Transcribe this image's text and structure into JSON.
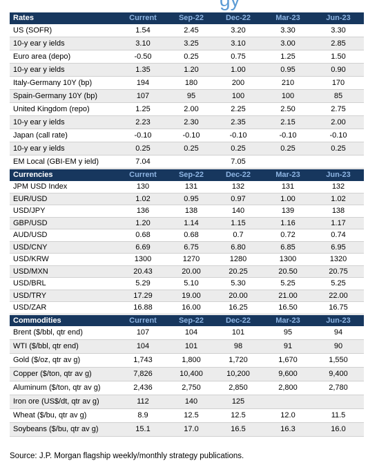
{
  "title_fragment": "gy",
  "sections": [
    {
      "title": "Rates",
      "columns": [
        "Current",
        "Sep-22",
        "Dec-22",
        "Mar-23",
        "Jun-23"
      ],
      "rows": [
        [
          "US (SOFR)",
          "1.54",
          "2.45",
          "3.20",
          "3.30",
          "3.30"
        ],
        [
          "10-y ear y ields",
          "3.10",
          "3.25",
          "3.10",
          "3.00",
          "2.85"
        ],
        [
          "Euro area (depo)",
          "-0.50",
          "0.25",
          "0.75",
          "1.25",
          "1.50"
        ],
        [
          "10-y ear y ields",
          "1.35",
          "1.20",
          "1.00",
          "0.95",
          "0.90"
        ],
        [
          "Italy-Germany 10Y (bp)",
          "194",
          "180",
          "200",
          "210",
          "170"
        ],
        [
          "Spain-Germany 10Y (bp)",
          "107",
          "95",
          "100",
          "100",
          "85"
        ],
        [
          "United Kingdom (repo)",
          "1.25",
          "2.00",
          "2.25",
          "2.50",
          "2.75"
        ],
        [
          "10-y ear y ields",
          "2.23",
          "2.30",
          "2.35",
          "2.15",
          "2.00"
        ],
        [
          "Japan (call rate)",
          "-0.10",
          "-0.10",
          "-0.10",
          "-0.10",
          "-0.10"
        ],
        [
          "10-y ear y ields",
          "0.25",
          "0.25",
          "0.25",
          "0.25",
          "0.25"
        ],
        [
          "EM Local (GBI-EM y ield)",
          "7.04",
          null,
          "7.05",
          null,
          null
        ]
      ]
    },
    {
      "title": "Currencies",
      "columns": [
        "Current",
        "Sep-22",
        "Dec-22",
        "Mar-23",
        "Jun-23"
      ],
      "rows": [
        [
          "JPM USD Index",
          "130",
          "131",
          "132",
          "131",
          "132"
        ],
        [
          "EUR/USD",
          "1.02",
          "0.95",
          "0.97",
          "1.00",
          "1.02"
        ],
        [
          "USD/JPY",
          "136",
          "138",
          "140",
          "139",
          "138"
        ],
        [
          "GBP/USD",
          "1.20",
          "1.14",
          "1.15",
          "1.16",
          "1.17"
        ],
        [
          "AUD/USD",
          "0.68",
          "0.68",
          "0.7",
          "0.72",
          "0.74"
        ],
        [
          "USD/CNY",
          "6.69",
          "6.75",
          "6.80",
          "6.85",
          "6.95"
        ],
        [
          "USD/KRW",
          "1300",
          "1270",
          "1280",
          "1300",
          "1320"
        ],
        [
          "USD/MXN",
          "20.43",
          "20.00",
          "20.25",
          "20.50",
          "20.75"
        ],
        [
          "USD/BRL",
          "5.29",
          "5.10",
          "5.30",
          "5.25",
          "5.25"
        ],
        [
          "USD/TRY",
          "17.29",
          "19.00",
          "20.00",
          "21.00",
          "22.00"
        ],
        [
          "USD/ZAR",
          "16.88",
          "16.00",
          "16.25",
          "16.50",
          "16.75"
        ]
      ]
    },
    {
      "title": "Commodities",
      "columns": [
        "Current",
        "Sep-22",
        "Dec-22",
        "Mar-23",
        "Jun-23"
      ],
      "rows": [
        [
          "Brent ($/bbl, qtr end)",
          "107",
          "104",
          "101",
          "95",
          "94"
        ],
        [
          "WTI ($/bbl, qtr end)",
          "104",
          "101",
          "98",
          "91",
          "90"
        ],
        [
          "Gold ($/oz, qtr av g)",
          "1,743",
          "1,800",
          "1,720",
          "1,670",
          "1,550"
        ],
        [
          "Copper ($/ton, qtr av g)",
          "7,826",
          "10,400",
          "10,200",
          "9,600",
          "9,400"
        ],
        [
          "Aluminum ($/ton, qtr av g)",
          "2,436",
          "2,750",
          "2,850",
          "2,800",
          "2,780"
        ],
        [
          "Iron ore (US$/dt, qtr av g)",
          "112",
          "140",
          "125",
          null,
          null
        ],
        [
          "Wheat ($/bu, qtr av g)",
          "8.9",
          "12.5",
          "12.5",
          "12.0",
          "11.5"
        ],
        [
          "Soybeans ($/bu, qtr av g)",
          "15.1",
          "17.0",
          "16.5",
          "16.3",
          "16.0"
        ]
      ]
    }
  ],
  "source": "Source: J.P. Morgan flagship weekly/monthly strategy publications."
}
